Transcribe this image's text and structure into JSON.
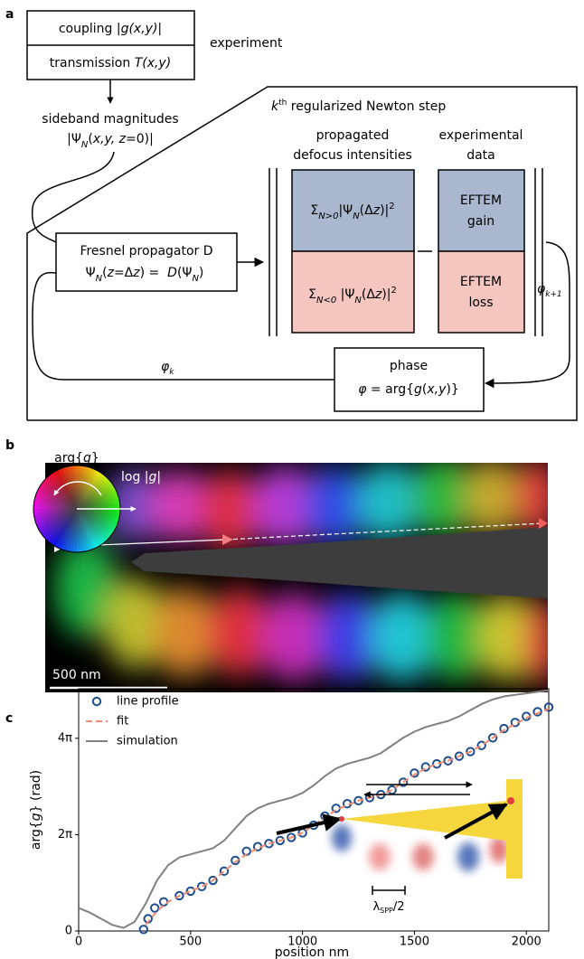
{
  "panel_a": {
    "label": "a",
    "coupling": [
      "coupling |",
      "g(x,y)",
      "|"
    ],
    "transmission": [
      "transmission ",
      "T(x,y)"
    ],
    "experiment": "experiment",
    "sideband": "sideband magnitudes",
    "sideband_formula": [
      "|Ψ",
      "N",
      "(",
      "x,y, z",
      "=0)|"
    ],
    "newton": [
      "k",
      "th",
      " regularized Newton step"
    ],
    "propagated": [
      "propagated",
      "defocus intensities"
    ],
    "experimental": [
      "experimental",
      "data"
    ],
    "gain_formula": [
      "Σ",
      "N>0",
      "|Ψ",
      "N",
      "(Δ",
      "z",
      ")|",
      "2"
    ],
    "loss_formula": [
      "Σ",
      "N<0",
      " |Ψ",
      "N",
      "(Δ",
      "z",
      ")|",
      "2"
    ],
    "eftem_gain": [
      "EFTEM",
      "gain"
    ],
    "eftem_loss": [
      "EFTEM",
      "loss"
    ],
    "fresnel": "Fresnel propagator D",
    "fresnel_formula": [
      "Ψ",
      "N",
      "(",
      "z",
      "=Δ",
      "z",
      ") =  ",
      "D",
      "(Ψ",
      "N",
      ")"
    ],
    "phi_k": [
      "φ",
      "k"
    ],
    "phi_k1": [
      "φ",
      "k+1"
    ],
    "phase": "phase",
    "phase_formula": [
      "φ",
      " = arg{",
      "g",
      "(",
      "x,y",
      ")}"
    ]
  },
  "panel_b": {
    "label": "b",
    "wheel_angle": [
      "arg{",
      "g",
      "}"
    ],
    "wheel_radius": [
      "log |",
      "g",
      "|"
    ],
    "scale_bar": "500 nm"
  },
  "chart_data": {
    "type": "line",
    "label": "c",
    "xlabel": "position nm",
    "ylabel": [
      "arg{",
      "g",
      "} (rad)"
    ],
    "xlim": [
      0,
      2100
    ],
    "ylim": [
      0,
      15.8
    ],
    "xticks": [
      0,
      500,
      1000,
      1500,
      2000
    ],
    "yticks": [
      0,
      {
        "value": 6.283,
        "label": "2π"
      },
      {
        "value": 12.566,
        "label": "4π"
      }
    ],
    "legend": "upper left",
    "inset_label": [
      "λ",
      "SPP",
      "/2"
    ],
    "series": [
      {
        "name": "line profile",
        "color": "#1f4e8c",
        "marker": "o",
        "x": [
          290,
          310,
          340,
          380,
          450,
          500,
          550,
          600,
          650,
          700,
          750,
          800,
          850,
          900,
          950,
          1000,
          1050,
          1100,
          1150,
          1200,
          1250,
          1300,
          1350,
          1400,
          1450,
          1500,
          1550,
          1600,
          1650,
          1700,
          1750,
          1800,
          1850,
          1900,
          1950,
          2000,
          2050,
          2100
        ],
        "values": [
          0.1,
          0.8,
          1.5,
          1.9,
          2.3,
          2.6,
          2.9,
          3.3,
          3.9,
          4.6,
          5.2,
          5.5,
          5.7,
          5.9,
          6.1,
          6.4,
          6.9,
          7.5,
          8.0,
          8.3,
          8.5,
          8.7,
          8.9,
          9.2,
          9.7,
          10.3,
          10.7,
          10.9,
          11.1,
          11.4,
          11.7,
          12.1,
          12.6,
          13.2,
          13.6,
          14.0,
          14.3,
          14.6
        ]
      },
      {
        "name": "fit",
        "color": "#f08a70",
        "linestyle": "dashed",
        "x": [
          300,
          350,
          400,
          450,
          500,
          550,
          600,
          650,
          700,
          750,
          800,
          850,
          900,
          950,
          1000,
          1050,
          1100,
          1150,
          1200,
          1250,
          1300,
          1350,
          1400,
          1450,
          1500,
          1550,
          1600,
          1650,
          1700,
          1750,
          1800,
          1850,
          1900,
          1950,
          2000,
          2050,
          2100
        ],
        "values": [
          0.4,
          1.3,
          1.9,
          2.3,
          2.6,
          2.9,
          3.3,
          3.9,
          4.5,
          5.0,
          5.4,
          5.7,
          5.9,
          6.1,
          6.4,
          6.9,
          7.4,
          7.9,
          8.2,
          8.5,
          8.7,
          8.9,
          9.2,
          9.7,
          10.2,
          10.6,
          10.9,
          11.1,
          11.4,
          11.7,
          12.1,
          12.6,
          13.1,
          13.5,
          13.9,
          14.2,
          14.5
        ]
      },
      {
        "name": "simulation",
        "color": "#808080",
        "linestyle": "solid",
        "x": [
          0,
          50,
          100,
          150,
          200,
          250,
          300,
          350,
          400,
          450,
          500,
          550,
          600,
          650,
          700,
          750,
          800,
          850,
          900,
          950,
          1000,
          1050,
          1100,
          1150,
          1200,
          1250,
          1300,
          1350,
          1400,
          1450,
          1500,
          1550,
          1600,
          1650,
          1700,
          1750,
          1800,
          1850,
          1900,
          1950,
          2000,
          2050,
          2100
        ],
        "values": [
          1.5,
          1.2,
          0.8,
          0.4,
          0.2,
          0.6,
          1.8,
          3.3,
          4.3,
          4.8,
          5.0,
          5.2,
          5.4,
          5.9,
          6.7,
          7.5,
          8.0,
          8.3,
          8.5,
          8.7,
          9.0,
          9.5,
          10.1,
          10.6,
          10.9,
          11.1,
          11.3,
          11.6,
          12.1,
          12.6,
          13.0,
          13.3,
          13.5,
          13.7,
          14.0,
          14.4,
          14.8,
          15.1,
          15.3,
          15.4,
          15.5,
          15.6,
          15.7
        ]
      }
    ]
  }
}
